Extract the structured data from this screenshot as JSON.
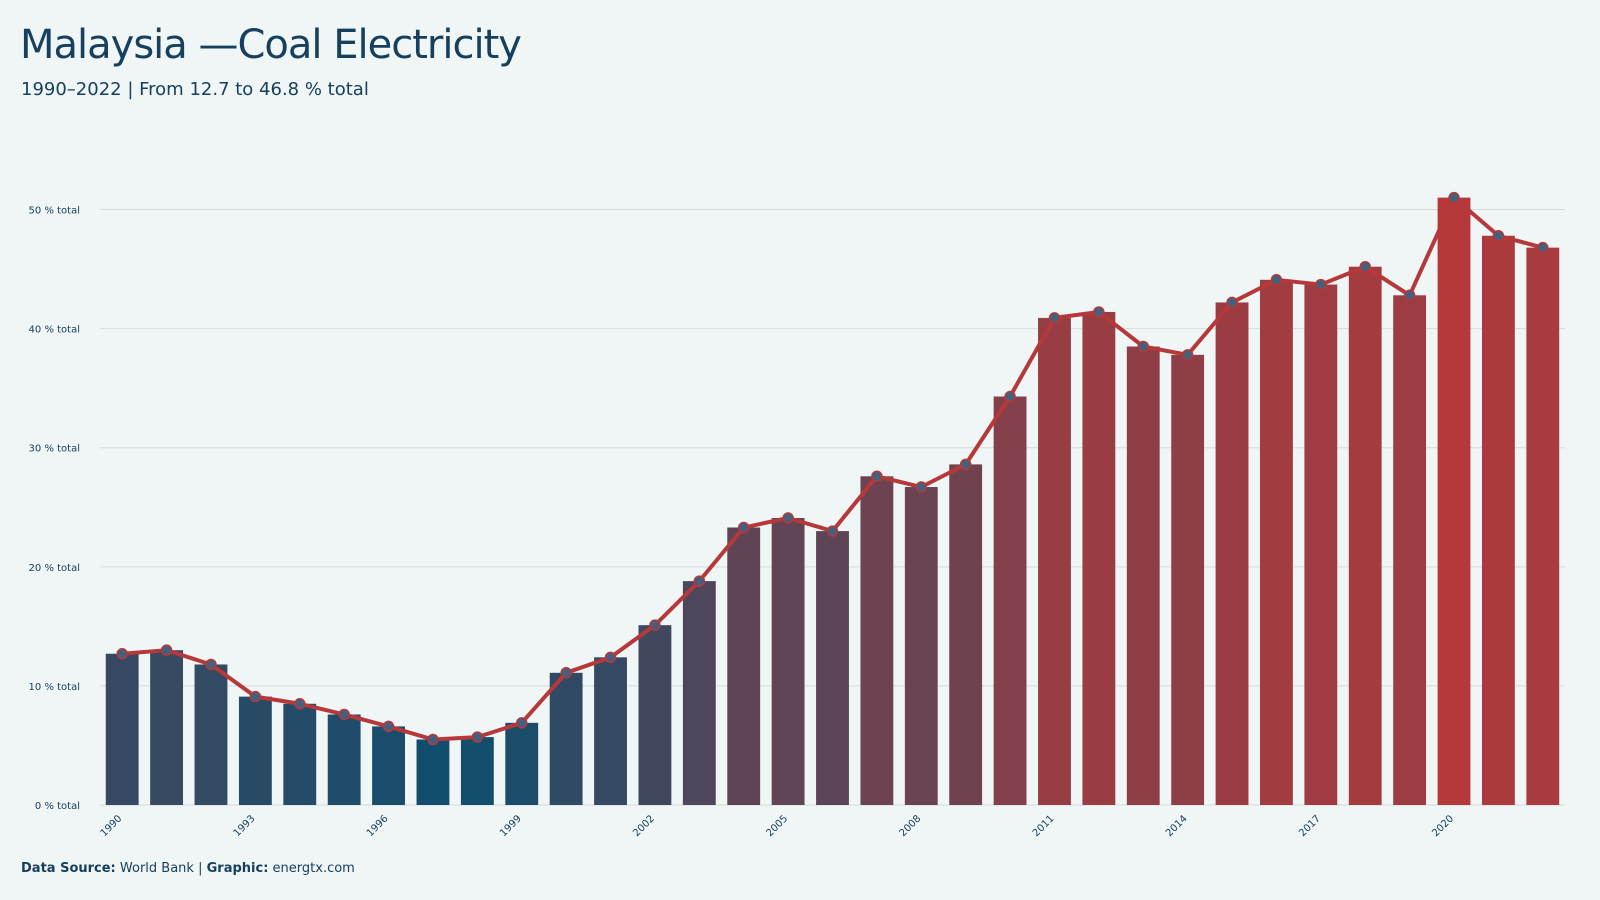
{
  "title": "Malaysia —Coal Electricity",
  "subtitle": "1990–2022 | From 12.7 to 46.8 % total",
  "footer": {
    "source_label": "Data Source:",
    "source_value": "World Bank",
    "separator": "|",
    "graphic_label": "Graphic:",
    "graphic_value": "energtx.com"
  },
  "colors": {
    "background": "#f0f5f5",
    "text": "#16405e",
    "line": "#b5393a",
    "bar_low": "#114e6e",
    "bar_high": "#b5393a",
    "marker": "#45607c",
    "grid": "#d5dcdc"
  },
  "chart_data": {
    "type": "bar",
    "title": "Malaysia —Coal Electricity",
    "subtitle": "1990–2022 | From 12.7 to 46.8 % total",
    "xlabel": "",
    "ylabel": "",
    "ylim": [
      0,
      55
    ],
    "y_ticks": [
      0,
      10,
      20,
      30,
      40,
      50
    ],
    "y_tick_labels": [
      "0 % total",
      "10 % total",
      "20 % total",
      "30 % total",
      "40 % total",
      "50 % total"
    ],
    "x_tick_labels": [
      "1990",
      "1993",
      "1996",
      "1999",
      "2002",
      "2005",
      "2008",
      "2011",
      "2014",
      "2017",
      "2020"
    ],
    "grid": true,
    "legend": "none",
    "overlay": "line with markers over bars",
    "x": [
      1990,
      1991,
      1992,
      1993,
      1994,
      1995,
      1996,
      1997,
      1998,
      1999,
      2000,
      2001,
      2002,
      2003,
      2004,
      2005,
      2006,
      2007,
      2008,
      2009,
      2010,
      2011,
      2012,
      2013,
      2014,
      2015,
      2016,
      2017,
      2018,
      2019,
      2020,
      2021,
      2022
    ],
    "values": [
      12.7,
      13.0,
      11.8,
      9.1,
      8.5,
      7.6,
      6.6,
      5.5,
      5.7,
      6.9,
      11.1,
      12.4,
      15.1,
      18.8,
      23.3,
      24.1,
      23.0,
      27.6,
      26.7,
      28.6,
      34.3,
      40.9,
      41.4,
      38.5,
      37.8,
      42.2,
      44.1,
      43.7,
      45.2,
      42.8,
      51.0,
      47.8,
      46.8
    ]
  }
}
